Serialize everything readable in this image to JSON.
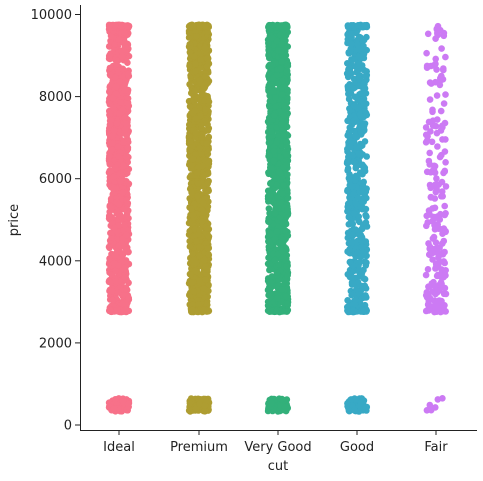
{
  "chart_data": {
    "type": "scatter",
    "subtype": "strip",
    "xlabel": "cut",
    "ylabel": "price",
    "title": "",
    "ylim": [
      0,
      10000
    ],
    "yticks": [
      0,
      2000,
      4000,
      6000,
      8000,
      10000
    ],
    "grid": false,
    "categories": [
      "Ideal",
      "Premium",
      "Very Good",
      "Good",
      "Fair"
    ],
    "colors": {
      "Ideal": "#f77189",
      "Premium": "#ae9d31",
      "Very Good": "#33b07a",
      "Good": "#38a9c5",
      "Fair": "#cc7af4"
    },
    "series": [
      {
        "category": "Ideal",
        "low_cluster": [
          330,
          650
        ],
        "main_range": [
          2750,
          9750
        ],
        "density": "dense"
      },
      {
        "category": "Premium",
        "low_cluster": [
          330,
          650
        ],
        "main_range": [
          2750,
          9750
        ],
        "density": "dense"
      },
      {
        "category": "Very Good",
        "low_cluster": [
          330,
          650
        ],
        "main_range": [
          2750,
          9750
        ],
        "density": "dense"
      },
      {
        "category": "Good",
        "low_cluster": [
          330,
          650
        ],
        "main_range": [
          2750,
          9750
        ],
        "density": "medium"
      },
      {
        "category": "Fair",
        "low_cluster": [
          330,
          650
        ],
        "main_range": [
          2750,
          9750
        ],
        "density": "sparse"
      }
    ]
  }
}
